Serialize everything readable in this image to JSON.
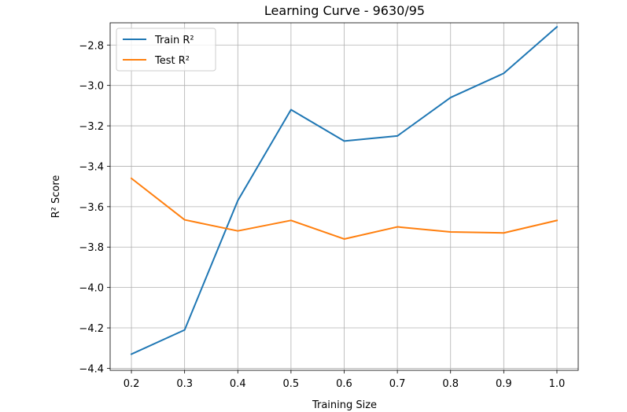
{
  "chart_data": {
    "type": "line",
    "title": "Learning Curve - 9630/95",
    "xlabel": "Training Size",
    "ylabel": "R² Score",
    "x": [
      0.2,
      0.3,
      0.4,
      0.5,
      0.6,
      0.7,
      0.8,
      0.9,
      1.0
    ],
    "xticks": [
      "0.2",
      "0.3",
      "0.4",
      "0.5",
      "0.6",
      "0.7",
      "0.8",
      "0.9",
      "1.0"
    ],
    "yticks": [
      "−2.8",
      "−3.0",
      "−3.2",
      "−3.4",
      "−3.6",
      "−3.8",
      "−4.0",
      "−4.2",
      "−4.4"
    ],
    "ytick_values": [
      -2.8,
      -3.0,
      -3.2,
      -3.4,
      -3.6,
      -3.8,
      -4.0,
      -4.2,
      -4.4
    ],
    "xlim": [
      0.16,
      1.04
    ],
    "ylim": [
      -4.41,
      -2.69
    ],
    "grid": true,
    "legend_position": "top-left",
    "series": [
      {
        "name": "Train R²",
        "color": "#1f77b4",
        "values": [
          -4.33,
          -4.21,
          -3.57,
          -3.12,
          -3.275,
          -3.25,
          -3.06,
          -2.94,
          -2.71
        ]
      },
      {
        "name": "Test R²",
        "color": "#ff7f0e",
        "values": [
          -3.46,
          -3.665,
          -3.72,
          -3.668,
          -3.76,
          -3.7,
          -3.725,
          -3.73,
          -3.668
        ]
      }
    ]
  }
}
